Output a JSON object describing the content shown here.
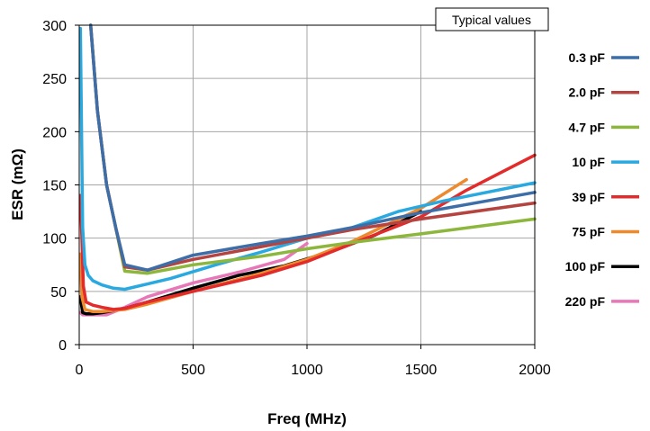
{
  "chart_data": {
    "type": "line",
    "xlabel": "Freq (MHz)",
    "ylabel": "ESR (mΩ)",
    "annotation": "Typical values",
    "xlim": [
      0,
      2000
    ],
    "ylim": [
      0,
      300
    ],
    "x_ticks": [
      "0",
      "500",
      "1000",
      "1500",
      "2000"
    ],
    "y_ticks": [
      "0",
      "50",
      "100",
      "150",
      "200",
      "250",
      "300"
    ],
    "grid": true,
    "legend_position": "right",
    "series": [
      {
        "name": "0.3 pF",
        "color": "#3e6ea8",
        "x": [
          50,
          80,
          120,
          160,
          200,
          300,
          500,
          800,
          1000,
          1200,
          1500,
          2000
        ],
        "y": [
          300,
          220,
          150,
          110,
          75,
          70,
          84,
          95,
          102,
          110,
          124,
          143
        ]
      },
      {
        "name": "2.0 pF",
        "color": "#b5433f",
        "x": [
          50,
          80,
          120,
          160,
          200,
          300,
          500,
          800,
          1000,
          1200,
          1500,
          2000
        ],
        "y": [
          300,
          220,
          150,
          110,
          73,
          70,
          80,
          92,
          100,
          108,
          118,
          133
        ]
      },
      {
        "name": "4.7 pF",
        "color": "#8db63c",
        "x": [
          50,
          80,
          120,
          160,
          200,
          300,
          500,
          800,
          1000,
          1200,
          1500,
          2000
        ],
        "y": [
          300,
          220,
          150,
          110,
          69,
          67,
          75,
          83,
          90,
          96,
          104,
          118
        ]
      },
      {
        "name": "10 pF",
        "color": "#2aa9e0",
        "x": [
          5,
          15,
          25,
          40,
          60,
          100,
          150,
          200,
          300,
          400,
          600,
          800,
          1000,
          1200,
          1400,
          1600,
          2000
        ],
        "y": [
          297,
          110,
          75,
          65,
          60,
          56,
          53,
          52,
          57,
          62,
          75,
          87,
          100,
          110,
          125,
          135,
          152
        ]
      },
      {
        "name": "39 pF",
        "color": "#e32b2b",
        "x": [
          5,
          12,
          18,
          30,
          60,
          100,
          150,
          200,
          300,
          500,
          800,
          1000,
          1200,
          1500,
          1700,
          2000
        ],
        "y": [
          140,
          100,
          55,
          40,
          37,
          35,
          33,
          34,
          40,
          50,
          65,
          78,
          95,
          120,
          145,
          178
        ]
      },
      {
        "name": "75 pF",
        "color": "#ee8a2e",
        "x": [
          5,
          12,
          25,
          60,
          100,
          200,
          300,
          500,
          800,
          1000,
          1200,
          1500,
          1700
        ],
        "y": [
          85,
          45,
          33,
          31,
          31,
          33,
          38,
          50,
          67,
          80,
          97,
          128,
          155
        ]
      },
      {
        "name": "100 pF",
        "color": "#000000",
        "x": [
          5,
          15,
          30,
          60,
          100,
          150,
          200,
          300,
          500,
          700,
          900,
          1100,
          1300,
          1500
        ],
        "y": [
          45,
          30,
          29,
          29,
          30,
          32,
          34,
          40,
          53,
          65,
          74,
          87,
          103,
          125
        ]
      },
      {
        "name": "220 pF",
        "color": "#e877b8",
        "x": [
          5,
          15,
          30,
          60,
          120,
          200,
          300,
          500,
          700,
          900,
          1000
        ],
        "y": [
          30,
          28,
          28,
          28,
          28,
          35,
          45,
          58,
          68,
          80,
          95
        ]
      }
    ]
  }
}
